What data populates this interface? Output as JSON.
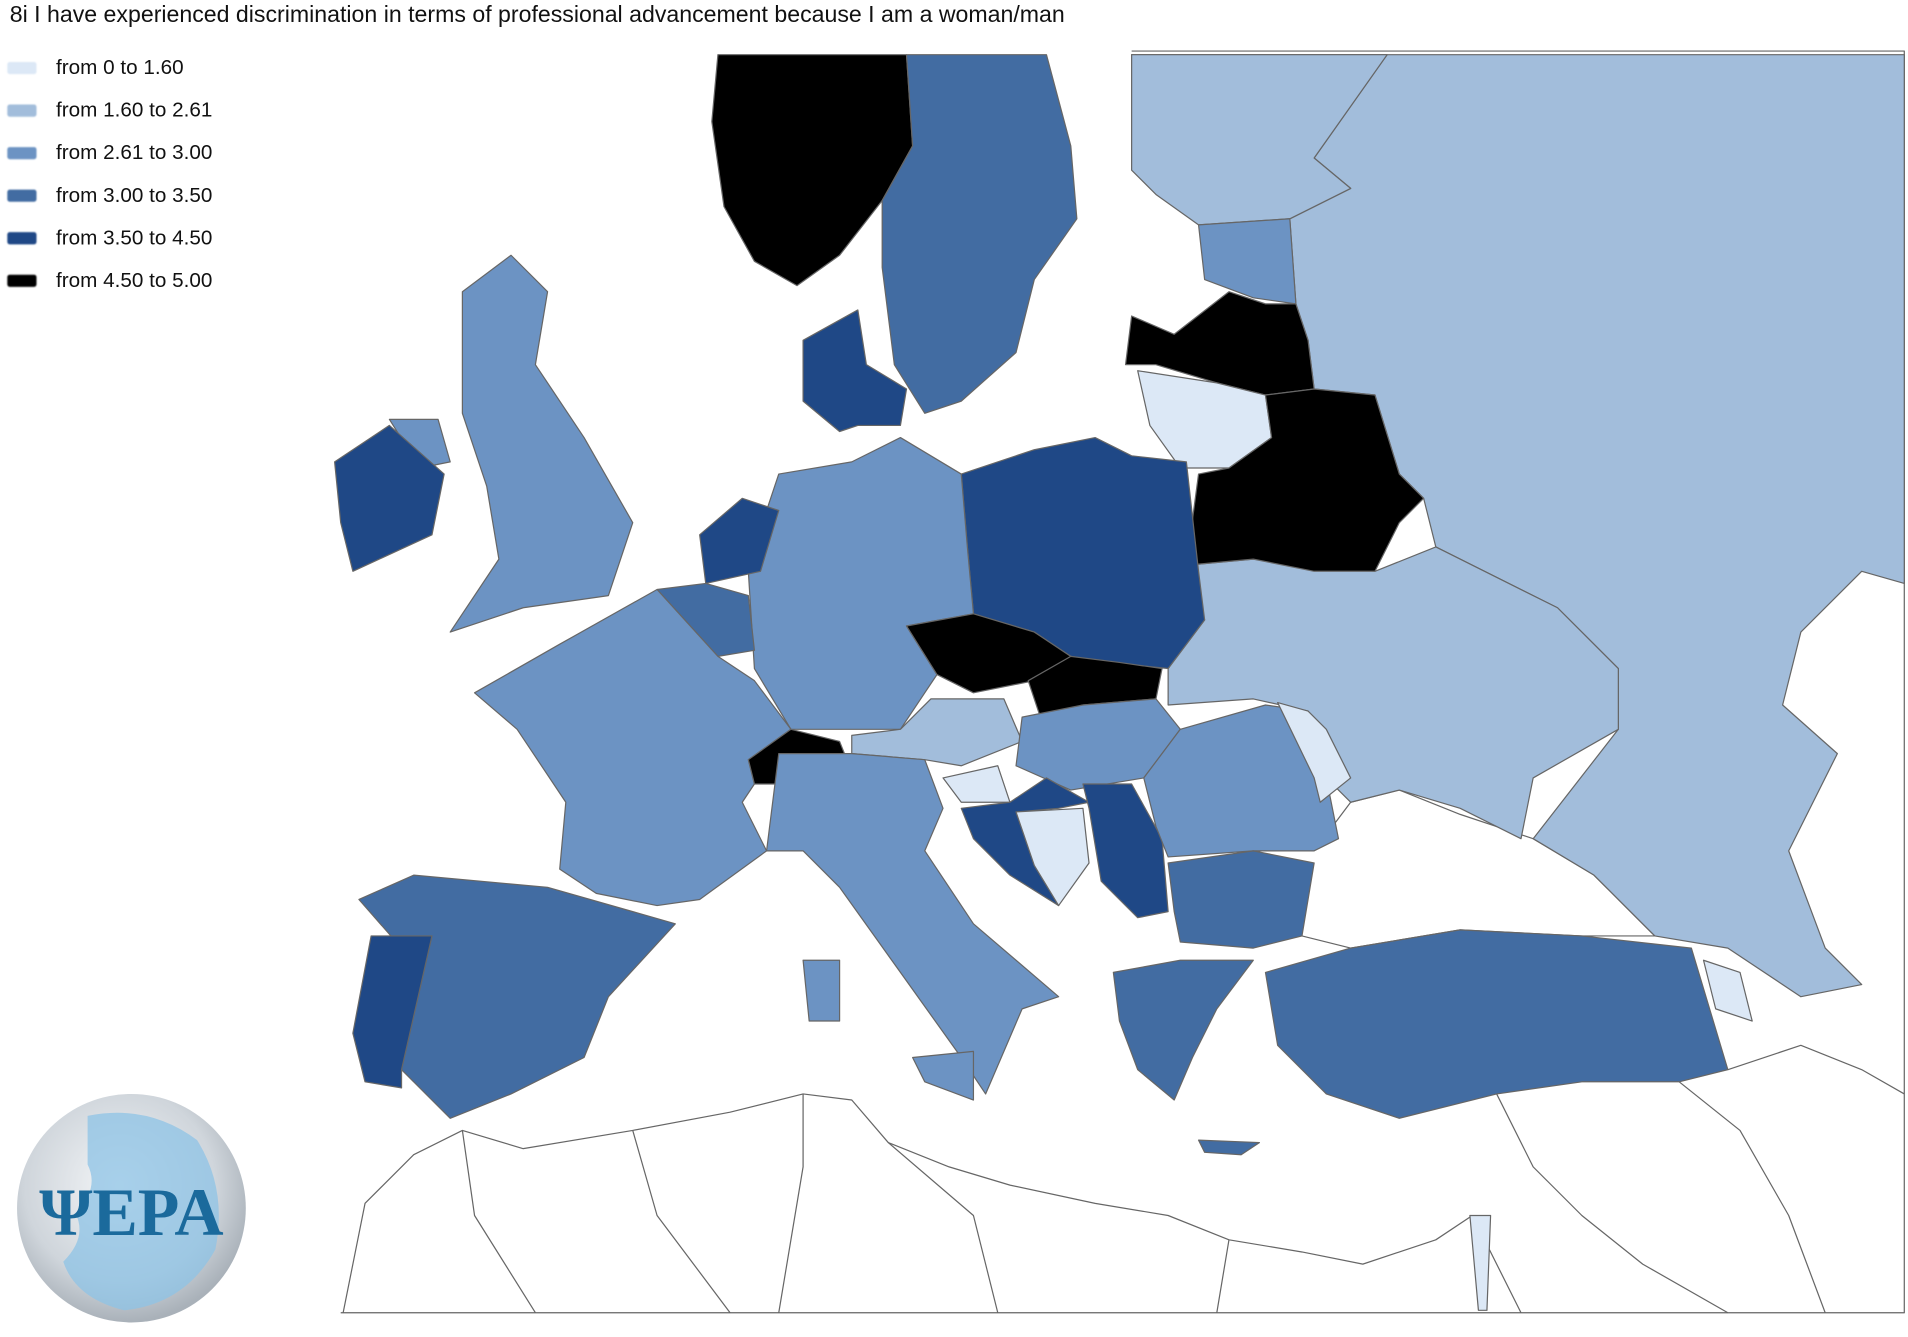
{
  "title": "8i  I have experienced discrimination in terms of professional advancement because I am a woman/man",
  "chart_data": {
    "type": "choropleth",
    "title": "8i  I have experienced discrimination in terms of professional advancement because I am a woman/man",
    "legend_placement": "top-left",
    "classes": [
      {
        "label": "from 0 to 1.60",
        "min": 0,
        "max": 1.6,
        "color": "#dce8f6"
      },
      {
        "label": "from 1.60 to 2.61",
        "min": 1.6,
        "max": 2.61,
        "color": "#a2bddb"
      },
      {
        "label": "from 2.61 to 3.00",
        "min": 2.61,
        "max": 3.0,
        "color": "#6c93c3"
      },
      {
        "label": "from 3.00 to 3.50",
        "min": 3.0,
        "max": 3.5,
        "color": "#426ca2"
      },
      {
        "label": "from 3.50 to 4.50",
        "min": 3.5,
        "max": 4.5,
        "color": "#1f4886"
      },
      {
        "label": "from 4.50 to 5.00",
        "min": 4.5,
        "max": 5.0,
        "color": "#000000"
      }
    ],
    "no_data_color": "#ffffff",
    "regions": [
      {
        "id": "russia",
        "class": 1
      },
      {
        "id": "finland",
        "class": 1
      },
      {
        "id": "ukraine",
        "class": 1
      },
      {
        "id": "estonia",
        "class": 2
      },
      {
        "id": "latvia",
        "class": 5
      },
      {
        "id": "lithuania",
        "class": 0
      },
      {
        "id": "belarus",
        "class": 5
      },
      {
        "id": "poland",
        "class": 4
      },
      {
        "id": "norway",
        "class": 5
      },
      {
        "id": "sweden",
        "class": 3
      },
      {
        "id": "denmark",
        "class": 4
      },
      {
        "id": "germany",
        "class": 2
      },
      {
        "id": "netherlands",
        "class": 4
      },
      {
        "id": "belgium",
        "class": 3
      },
      {
        "id": "france",
        "class": 2
      },
      {
        "id": "switzerland",
        "class": 5
      },
      {
        "id": "austria",
        "class": 1
      },
      {
        "id": "czechia",
        "class": 5
      },
      {
        "id": "slovakia",
        "class": 5
      },
      {
        "id": "hungary",
        "class": 2
      },
      {
        "id": "slovenia",
        "class": 0
      },
      {
        "id": "croatia",
        "class": 4
      },
      {
        "id": "bosnia",
        "class": 0
      },
      {
        "id": "serbia",
        "class": 4
      },
      {
        "id": "romania",
        "class": 2
      },
      {
        "id": "moldova",
        "class": 0
      },
      {
        "id": "bulgaria",
        "class": 3
      },
      {
        "id": "greece",
        "class": 3
      },
      {
        "id": "turkey",
        "class": 3
      },
      {
        "id": "italy",
        "class": 2
      },
      {
        "id": "spain",
        "class": 3
      },
      {
        "id": "portugal",
        "class": 4
      },
      {
        "id": "united-kingdom",
        "class": 2
      },
      {
        "id": "ireland",
        "class": 4
      },
      {
        "id": "georgia-armenia",
        "class": 0
      },
      {
        "id": "israel",
        "class": 0
      },
      {
        "id": "cyprus",
        "class": 3
      }
    ]
  },
  "logo": {
    "text": "ΨEPA",
    "color": "#1b6a9c"
  }
}
